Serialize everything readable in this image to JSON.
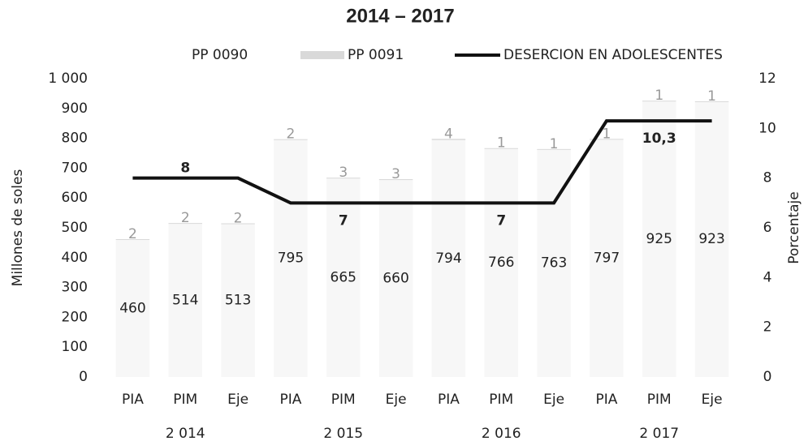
{
  "chart_data": {
    "type": "bar-line",
    "title": "2014 – 2017",
    "y_label": "Millones de soles",
    "y2_label": "Porcentaje",
    "categories": [
      "PIA",
      "PIM",
      "Eje",
      "PIA",
      "PIM",
      "Eje",
      "PIA",
      "PIM",
      "Eje",
      "PIA",
      "PIM",
      "Eje"
    ],
    "groups": [
      "2 014",
      "2 015",
      "2 016",
      "2 017"
    ],
    "series": [
      {
        "name": "PP 0090",
        "type": "bar",
        "color": "#f7f7f7",
        "values": [
          460,
          514,
          513,
          795,
          665,
          660,
          794,
          766,
          763,
          797,
          925,
          923
        ]
      },
      {
        "name": "PP 0091",
        "type": "bar",
        "color": "#d9d9d9",
        "values": [
          2,
          2,
          2,
          2,
          3,
          3,
          4,
          1,
          1,
          1,
          1,
          1
        ]
      },
      {
        "name": "DESERCION EN ADOLESCENTES",
        "type": "line",
        "axis": "y2",
        "color": "#111111",
        "values": [
          8,
          8,
          8,
          7,
          7,
          7,
          7,
          7,
          7,
          10.3,
          10.3,
          10.3
        ],
        "value_labels": [
          null,
          "8",
          null,
          null,
          "7",
          null,
          null,
          "7",
          null,
          null,
          "10,3",
          null
        ]
      }
    ],
    "stacked": true,
    "ylim": [
      0,
      1000
    ],
    "yticks": [
      0,
      100,
      200,
      300,
      400,
      500,
      600,
      700,
      800,
      900,
      {
        "value": 1000,
        "label": "1 000"
      }
    ],
    "y2lim": [
      0,
      12
    ],
    "y2ticks": [
      0,
      2,
      4,
      6,
      8,
      10,
      12
    ],
    "legend": "top"
  }
}
